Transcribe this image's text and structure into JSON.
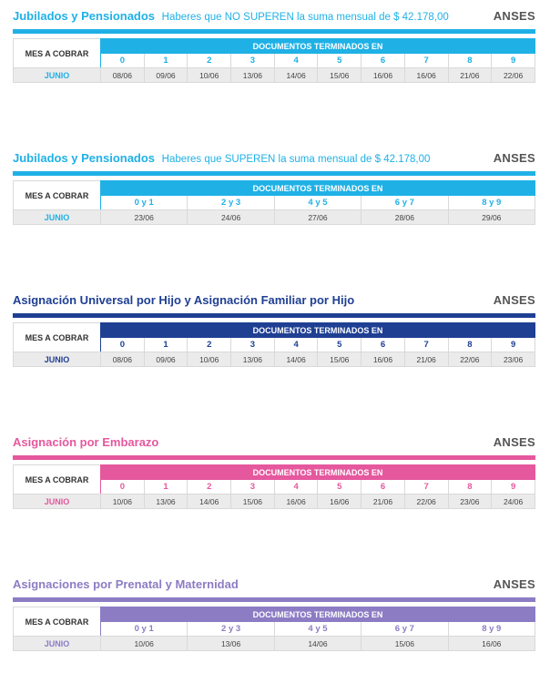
{
  "brand": "ANSES",
  "header_label": "MES A COBRAR",
  "docs_label": "DOCUMENTOS TERMINADOS EN",
  "sections": [
    {
      "title": "Jubilados y Pensionados",
      "subtitle": "Haberes que NO SUPEREN la suma mensual de $ 42.178,00",
      "color": "#1fb1e6",
      "month": "JUNIO",
      "digits": [
        "0",
        "1",
        "2",
        "3",
        "4",
        "5",
        "6",
        "7",
        "8",
        "9"
      ],
      "dates": [
        "08/06",
        "09/06",
        "10/06",
        "13/06",
        "14/06",
        "15/06",
        "16/06",
        "16/06",
        "21/06",
        "22/06"
      ]
    },
    {
      "title": "Jubilados y Pensionados",
      "subtitle": "Haberes que SUPEREN la suma mensual de $ 42.178,00",
      "color": "#1fb1e6",
      "month": "JUNIO",
      "digits": [
        "0 y 1",
        "2 y 3",
        "4 y 5",
        "6 y 7",
        "8 y 9"
      ],
      "dates": [
        "23/06",
        "24/06",
        "27/06",
        "28/06",
        "29/06"
      ]
    },
    {
      "title": "Asignación Universal por Hijo y Asignación Familiar por Hijo",
      "subtitle": "",
      "color": "#1f3f93",
      "month": "JUNIO",
      "digits": [
        "0",
        "1",
        "2",
        "3",
        "4",
        "5",
        "6",
        "7",
        "8",
        "9"
      ],
      "dates": [
        "08/06",
        "09/06",
        "10/06",
        "13/06",
        "14/06",
        "15/06",
        "16/06",
        "21/06",
        "22/06",
        "23/06"
      ]
    },
    {
      "title": "Asignación por Embarazo",
      "subtitle": "",
      "color": "#e5589e",
      "month": "JUNIO",
      "digits": [
        "0",
        "1",
        "2",
        "3",
        "4",
        "5",
        "6",
        "7",
        "8",
        "9"
      ],
      "dates": [
        "10/06",
        "13/06",
        "14/06",
        "15/06",
        "16/06",
        "16/06",
        "21/06",
        "22/06",
        "23/06",
        "24/06"
      ]
    },
    {
      "title": "Asignaciones por Prenatal y Maternidad",
      "subtitle": "",
      "color": "#8c7cc4",
      "month": "JUNIO",
      "digits": [
        "0 y 1",
        "2 y 3",
        "4 y 5",
        "6 y 7",
        "8 y 9"
      ],
      "dates": [
        "10/06",
        "13/06",
        "14/06",
        "15/06",
        "16/06"
      ]
    }
  ]
}
